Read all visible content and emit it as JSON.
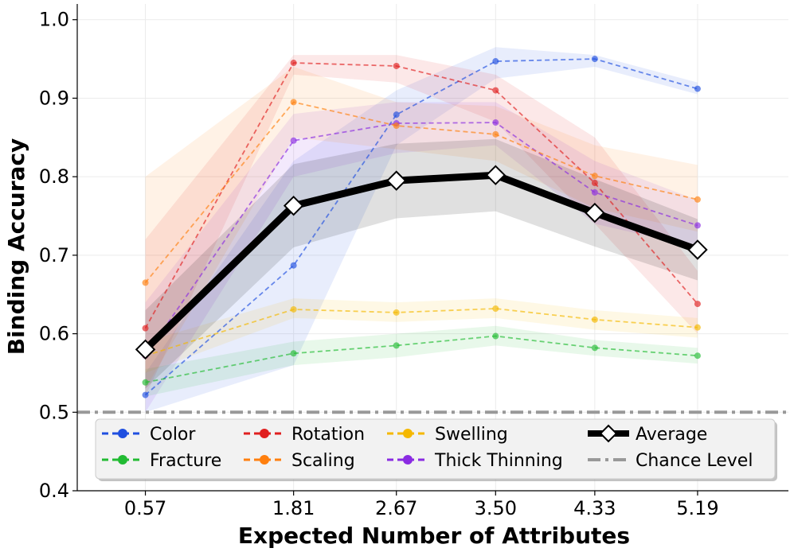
{
  "chart_data": {
    "type": "line",
    "xlabel": "Expected Number of Attributes",
    "ylabel": "Binding Accuracy",
    "x": [
      0.57,
      1.81,
      2.67,
      3.5,
      4.33,
      5.19
    ],
    "x_tick_labels": [
      "0.57",
      "1.81",
      "2.67",
      "3.50",
      "4.33",
      "5.19"
    ],
    "xlim": [
      0.0,
      5.95
    ],
    "ylim": [
      0.4,
      1.02
    ],
    "y_ticks": [
      0.4,
      0.5,
      0.6,
      0.7,
      0.8,
      0.9,
      1.0
    ],
    "y_tick_labels": [
      "0.4",
      "0.5",
      "0.6",
      "0.7",
      "0.8",
      "0.9",
      "1.0"
    ],
    "grid": true,
    "legend_position": "bottom-center",
    "series": [
      {
        "name": "Color",
        "color": "#1f4fe0",
        "style": "dashed",
        "values": [
          0.522,
          0.687,
          0.879,
          0.947,
          0.95,
          0.912
        ],
        "band_low": [
          0.5,
          0.56,
          0.84,
          0.925,
          0.94,
          0.905
        ],
        "band_high": [
          0.55,
          0.82,
          0.91,
          0.965,
          0.955,
          0.92
        ]
      },
      {
        "name": "Rotation",
        "color": "#e01f1f",
        "style": "dashed",
        "values": [
          0.607,
          0.945,
          0.941,
          0.91,
          0.792,
          0.638
        ],
        "band_low": [
          0.52,
          0.93,
          0.92,
          0.87,
          0.74,
          0.6
        ],
        "band_high": [
          0.72,
          0.955,
          0.955,
          0.93,
          0.85,
          0.68
        ]
      },
      {
        "name": "Swelling",
        "color": "#f5b800",
        "style": "dashed",
        "values": [
          0.572,
          0.631,
          0.627,
          0.632,
          0.618,
          0.608
        ],
        "band_low": [
          0.55,
          0.62,
          0.615,
          0.62,
          0.605,
          0.595
        ],
        "band_high": [
          0.59,
          0.645,
          0.64,
          0.645,
          0.63,
          0.62
        ]
      },
      {
        "name": "Thick Thinning",
        "color": "#8a2be2",
        "style": "dashed",
        "values": [
          0.572,
          0.846,
          0.868,
          0.869,
          0.78,
          0.738
        ],
        "band_low": [
          0.5,
          0.8,
          0.83,
          0.84,
          0.74,
          0.71
        ],
        "band_high": [
          0.64,
          0.88,
          0.895,
          0.895,
          0.82,
          0.77
        ]
      },
      {
        "name": "Fracture",
        "color": "#22bb33",
        "style": "dashed",
        "values": [
          0.538,
          0.575,
          0.585,
          0.597,
          0.582,
          0.572
        ],
        "band_low": [
          0.52,
          0.56,
          0.57,
          0.585,
          0.572,
          0.562
        ],
        "band_high": [
          0.555,
          0.59,
          0.6,
          0.61,
          0.592,
          0.582
        ]
      },
      {
        "name": "Scaling",
        "color": "#ff7f0e",
        "style": "dashed",
        "values": [
          0.665,
          0.895,
          0.865,
          0.854,
          0.801,
          0.771
        ],
        "band_low": [
          0.53,
          0.85,
          0.835,
          0.82,
          0.76,
          0.73
        ],
        "band_high": [
          0.8,
          0.94,
          0.895,
          0.89,
          0.84,
          0.815
        ]
      },
      {
        "name": "Average",
        "color": "#000000",
        "style": "solid",
        "values": [
          0.58,
          0.763,
          0.795,
          0.802,
          0.754,
          0.707
        ],
        "band_low": [
          0.53,
          0.71,
          0.747,
          0.756,
          0.711,
          0.668
        ],
        "band_high": [
          0.63,
          0.816,
          0.842,
          0.848,
          0.797,
          0.746
        ]
      }
    ],
    "reference_lines": [
      {
        "name": "Chance Level",
        "value": 0.5,
        "color": "#999999",
        "style": "dashdot"
      }
    ],
    "legend": [
      {
        "label": "Color",
        "series": "Color"
      },
      {
        "label": "Rotation",
        "series": "Rotation"
      },
      {
        "label": "Swelling",
        "series": "Swelling"
      },
      {
        "label": "Average",
        "series": "Average"
      },
      {
        "label": "Fracture",
        "series": "Fracture"
      },
      {
        "label": "Scaling",
        "series": "Scaling"
      },
      {
        "label": "Thick Thinning",
        "series": "Thick Thinning"
      },
      {
        "label": "Chance Level",
        "series": "Chance Level"
      }
    ]
  }
}
